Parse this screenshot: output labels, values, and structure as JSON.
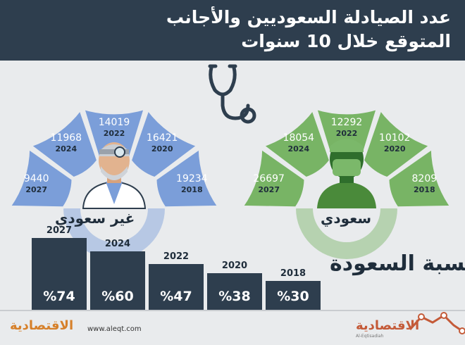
{
  "header": {
    "title_line1": "عدد الصيادلة السعوديين والأجانب",
    "title_line2": "المتوقع خلال 10 سنوات"
  },
  "chart_data": [
    {
      "type": "pie",
      "group_label": "غير سعودي",
      "color": "#7b9ed9",
      "segments": [
        {
          "year": "2027",
          "value": "9440"
        },
        {
          "year": "2024",
          "value": "11968"
        },
        {
          "year": "2022",
          "value": "14019"
        },
        {
          "year": "2020",
          "value": "16421"
        },
        {
          "year": "2018",
          "value": "19234"
        }
      ]
    },
    {
      "type": "pie",
      "group_label": "سعودي",
      "color": "#78b465",
      "segments": [
        {
          "year": "2027",
          "value": "26697"
        },
        {
          "year": "2024",
          "value": "18054"
        },
        {
          "year": "2022",
          "value": "12292"
        },
        {
          "year": "2020",
          "value": "10102"
        },
        {
          "year": "2018",
          "value": "8209"
        }
      ]
    },
    {
      "type": "bar",
      "title": "نسبة السعودة",
      "categories": [
        "2027",
        "2024",
        "2022",
        "2020",
        "2018"
      ],
      "values": [
        74,
        60,
        47,
        38,
        30
      ],
      "labels": [
        "%74",
        "%60",
        "%47",
        "%38",
        "%30"
      ],
      "color": "#2e3e4e"
    }
  ],
  "footer": {
    "url": "www.aleqt.com",
    "logo_left": "الاقتصادية",
    "logo_right": "الاقتصادية",
    "logo_right_sub": "Al-Eqtisadiah"
  },
  "icons": [
    "stethoscope-icon",
    "doctor-icon",
    "surgeon-icon",
    "chart-trend-icon"
  ]
}
